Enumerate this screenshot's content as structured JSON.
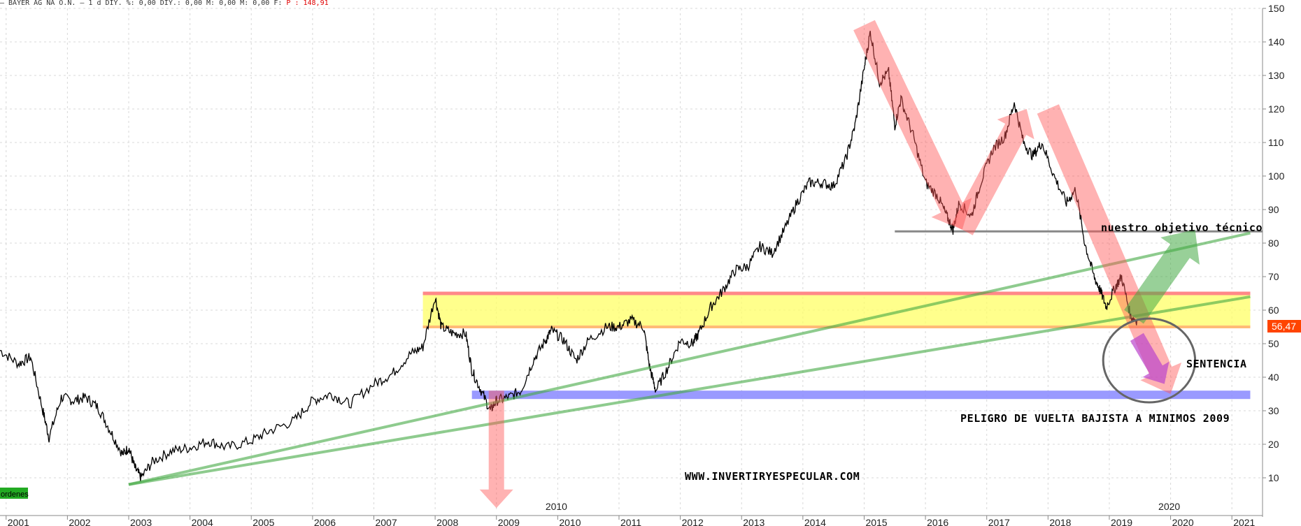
{
  "header": {
    "ticker_text": "– BAYER AG NA O.N. –  1 d DIY.  %: 0,00 DIY.: 0,00 M: 0,00 M: 0,00 F:",
    "price_text": "P : 148,91"
  },
  "chart_data": {
    "type": "line",
    "title": "",
    "xlabel": "",
    "ylabel": "",
    "xlim": [
      2000.9,
      2021.5
    ],
    "ylim": [
      0,
      150
    ],
    "grid": true,
    "y_axis_position": "right",
    "x_ticks": [
      "2001",
      "2002",
      "2003",
      "2004",
      "2005",
      "2006",
      "2007",
      "2008",
      "2009",
      "2010",
      "2011",
      "2012",
      "2013",
      "2014",
      "2015",
      "2016",
      "2017",
      "2018",
      "2019",
      "2020",
      "2021"
    ],
    "x_ticks_sub": [
      {
        "label": "2010",
        "x": 2009.8
      },
      {
        "label": "2020",
        "x": 2019.8
      }
    ],
    "y_ticks": [
      150,
      140,
      130,
      120,
      110,
      100,
      90,
      80,
      70,
      60,
      50,
      40,
      30,
      20,
      10
    ],
    "current_price_label": "56,47",
    "current_price": 56.47,
    "series": [
      {
        "name": "",
        "points": [
          [
            2000.9,
            48
          ],
          [
            2001.2,
            44
          ],
          [
            2001.4,
            46
          ],
          [
            2001.6,
            30
          ],
          [
            2001.7,
            22
          ],
          [
            2001.9,
            34
          ],
          [
            2002.1,
            33
          ],
          [
            2002.3,
            34
          ],
          [
            2002.5,
            31
          ],
          [
            2002.7,
            24
          ],
          [
            2002.9,
            17
          ],
          [
            2003.0,
            19
          ],
          [
            2003.1,
            13
          ],
          [
            2003.2,
            10
          ],
          [
            2003.4,
            15
          ],
          [
            2003.7,
            18
          ],
          [
            2004.0,
            19
          ],
          [
            2004.3,
            21
          ],
          [
            2004.6,
            19
          ],
          [
            2005.0,
            21
          ],
          [
            2005.3,
            24
          ],
          [
            2005.7,
            27
          ],
          [
            2006.0,
            33
          ],
          [
            2006.3,
            35
          ],
          [
            2006.6,
            32
          ],
          [
            2007.0,
            38
          ],
          [
            2007.3,
            41
          ],
          [
            2007.6,
            47
          ],
          [
            2007.8,
            49
          ],
          [
            2008.0,
            64
          ],
          [
            2008.1,
            55
          ],
          [
            2008.3,
            53
          ],
          [
            2008.5,
            53
          ],
          [
            2008.6,
            42
          ],
          [
            2008.75,
            36
          ],
          [
            2008.9,
            30
          ],
          [
            2009.0,
            33
          ],
          [
            2009.2,
            34
          ],
          [
            2009.4,
            36
          ],
          [
            2009.6,
            45
          ],
          [
            2009.8,
            51
          ],
          [
            2009.9,
            54
          ],
          [
            2010.1,
            51
          ],
          [
            2010.3,
            45
          ],
          [
            2010.5,
            51
          ],
          [
            2010.8,
            55
          ],
          [
            2011.0,
            55
          ],
          [
            2011.2,
            57
          ],
          [
            2011.4,
            55
          ],
          [
            2011.5,
            43
          ],
          [
            2011.6,
            36
          ],
          [
            2011.8,
            43
          ],
          [
            2012.0,
            51
          ],
          [
            2012.2,
            50
          ],
          [
            2012.3,
            53
          ],
          [
            2012.5,
            61
          ],
          [
            2012.7,
            66
          ],
          [
            2012.9,
            72
          ],
          [
            2013.1,
            73
          ],
          [
            2013.3,
            79
          ],
          [
            2013.5,
            77
          ],
          [
            2013.7,
            84
          ],
          [
            2013.9,
            92
          ],
          [
            2014.1,
            98
          ],
          [
            2014.3,
            98
          ],
          [
            2014.5,
            97
          ],
          [
            2014.7,
            105
          ],
          [
            2014.85,
            115
          ],
          [
            2015.0,
            132
          ],
          [
            2015.1,
            143
          ],
          [
            2015.25,
            128
          ],
          [
            2015.4,
            131
          ],
          [
            2015.5,
            115
          ],
          [
            2015.6,
            123
          ],
          [
            2015.8,
            112
          ],
          [
            2016.0,
            98
          ],
          [
            2016.2,
            94
          ],
          [
            2016.35,
            88
          ],
          [
            2016.45,
            84
          ],
          [
            2016.55,
            92
          ],
          [
            2016.75,
            88
          ],
          [
            2016.9,
            98
          ],
          [
            2017.1,
            108
          ],
          [
            2017.3,
            112
          ],
          [
            2017.45,
            122
          ],
          [
            2017.6,
            110
          ],
          [
            2017.75,
            106
          ],
          [
            2017.9,
            110
          ],
          [
            2018.1,
            100
          ],
          [
            2018.3,
            92
          ],
          [
            2018.45,
            96
          ],
          [
            2018.6,
            80
          ],
          [
            2018.75,
            70
          ],
          [
            2018.85,
            66
          ],
          [
            2018.95,
            61
          ],
          [
            2019.1,
            67
          ],
          [
            2019.2,
            70
          ],
          [
            2019.35,
            58
          ],
          [
            2019.45,
            57
          ]
        ]
      }
    ],
    "shapes": {
      "yellow_band": {
        "x": [
          2007.8,
          2021.3
        ],
        "y": [
          55,
          65
        ],
        "color": "#ffff66"
      },
      "red_line": {
        "x": [
          2007.8,
          2021.3
        ],
        "y": 65,
        "color": "#ff8888"
      },
      "orange_line": {
        "x": [
          2007.8,
          2021.3
        ],
        "y": 55,
        "color": "#ffbb77"
      },
      "blue_band": {
        "x": [
          2008.6,
          2021.3
        ],
        "y": [
          33.5,
          36
        ],
        "color": "#8888ff"
      },
      "gray_line": {
        "x": [
          2015.5,
          2021.5
        ],
        "y": 83.5,
        "color": "#888888"
      },
      "green_lines": [
        {
          "from": [
            2003.0,
            8
          ],
          "to": [
            2021.3,
            83
          ]
        },
        {
          "from": [
            2003.0,
            8
          ],
          "to": [
            2021.3,
            64
          ]
        }
      ],
      "red_arrows": [
        {
          "from": [
            2015.0,
            145
          ],
          "to": [
            2016.6,
            84
          ]
        },
        {
          "from": [
            2018.0,
            120
          ],
          "to": [
            2020.0,
            35
          ]
        },
        {
          "from": [
            2009.0,
            36
          ],
          "to": [
            2009.0,
            1
          ]
        }
      ],
      "red_up_arrow": {
        "from": [
          2016.6,
          84
        ],
        "to": [
          2017.65,
          120
        ]
      },
      "green_arrow": {
        "from": [
          2019.4,
          58
        ],
        "to": [
          2020.4,
          84
        ]
      },
      "purple_arrow": {
        "from": [
          2019.45,
          52
        ],
        "to": [
          2019.9,
          38
        ]
      },
      "ellipse": {
        "cx": 2019.65,
        "cy": 45,
        "rx": 0.75,
        "ry": 12.5
      }
    },
    "annotations": {
      "target": "nuestro objetivo técnico",
      "sentencia": "SENTENCIA",
      "peligro": "PELIGRO DE VUELTA BAJISTA A MINIMOS 2009",
      "website": "WWW.INVERTIRYESPECULAR.COM"
    },
    "legend_label": "ordenes"
  },
  "colors": {
    "price_line": "#000000",
    "axis": "#888888",
    "grid": "#d8d8d8",
    "price_badge": "#ff4400"
  }
}
